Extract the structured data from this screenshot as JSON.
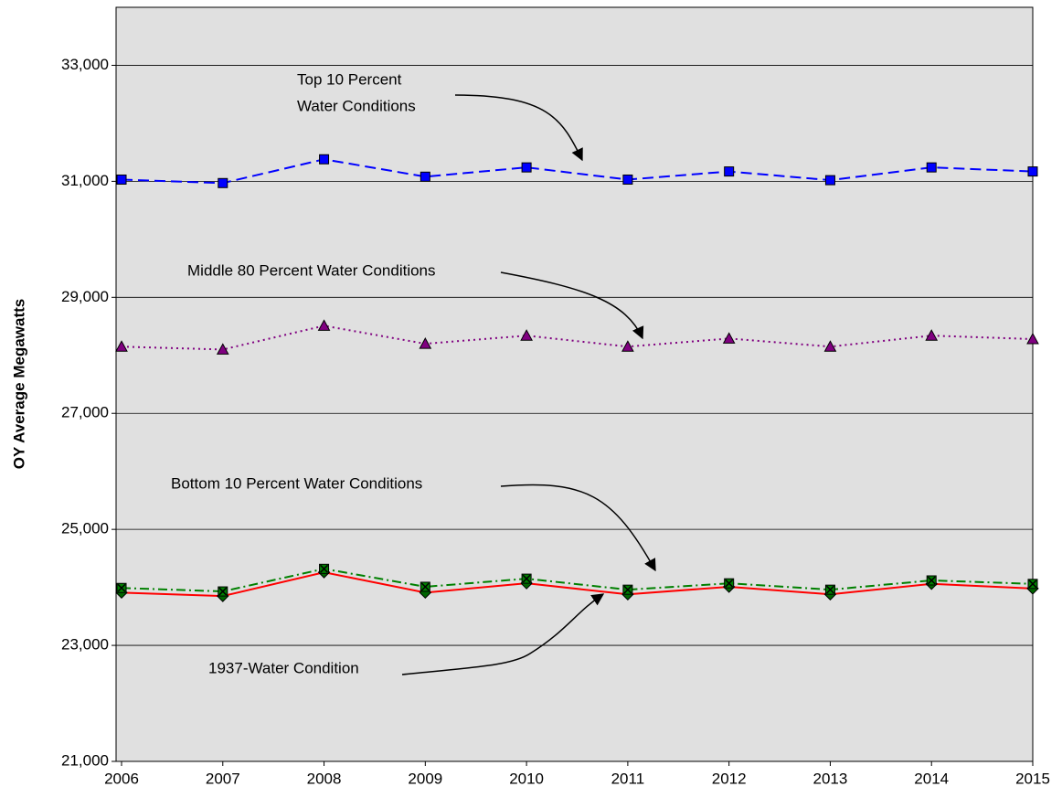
{
  "chart_data": {
    "type": "line",
    "y_label": "OY Average Megawatts",
    "categories": [
      "2006",
      "2007",
      "2008",
      "2009",
      "2010",
      "2011",
      "2012",
      "2013",
      "2014",
      "2015"
    ],
    "series": [
      {
        "color": "#0000ff",
        "marker": "square",
        "marker_color": "#0000ff",
        "dash": "12 6",
        "values": [
          31030,
          30970,
          31380,
          31080,
          31240,
          31030,
          31170,
          31020,
          31240,
          31170
        ]
      },
      {
        "color": "#800080",
        "marker": "triangle",
        "marker_color": "#800080",
        "dash": "2 4",
        "values": [
          28150,
          28100,
          28510,
          28200,
          28340,
          28150,
          28290,
          28150,
          28340,
          28280
        ]
      },
      {
        "color": "#008000",
        "marker": "square-x",
        "marker_color": "#008000",
        "dash": "10 4 2 4",
        "values": [
          23990,
          23930,
          24320,
          24010,
          24150,
          23960,
          24070,
          23960,
          24120,
          24060
        ]
      },
      {
        "color": "#ff0000",
        "marker": "diamond",
        "marker_color": "#006400",
        "dash": "none",
        "values": [
          23910,
          23850,
          24260,
          23910,
          24070,
          23880,
          24010,
          23880,
          24060,
          23980
        ]
      }
    ],
    "annotations": [
      {
        "lines": [
          "Top 10 Percent",
          "Water Conditions"
        ]
      },
      {
        "lines": [
          "Middle 80 Percent Water Conditions"
        ]
      },
      {
        "lines": [
          "Bottom 10 Percent Water Conditions"
        ]
      },
      {
        "lines": [
          "1937-Water Condition"
        ]
      }
    ],
    "ylim": [
      21000,
      34000
    ],
    "yticks": [
      {
        "value": 21000,
        "label": "21,000"
      },
      {
        "value": 23000,
        "label": "23,000"
      },
      {
        "value": 25000,
        "label": "25,000"
      },
      {
        "value": 27000,
        "label": "27,000"
      },
      {
        "value": 29000,
        "label": "29,000"
      },
      {
        "value": 31000,
        "label": "31,000"
      },
      {
        "value": 33000,
        "label": "33,000"
      }
    ],
    "grid": true
  }
}
